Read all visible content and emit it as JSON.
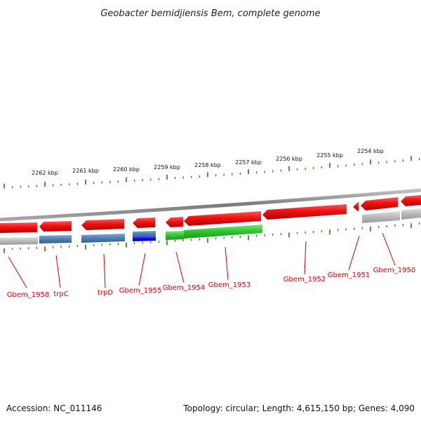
{
  "title": "Geobacter bemidjiensis Bem, complete genome",
  "footer": {
    "accession": "Accession: NC_011146",
    "summary": "Topology: circular; Length: 4,615,150 bp; Genes: 4,090"
  },
  "scale_labels": [
    "2262 kbp",
    "2261 kbp",
    "2260 kbp",
    "2259 kbp",
    "2258 kbp",
    "2257 kbp",
    "2256 kbp",
    "2255 kbp",
    "2254 kbp"
  ],
  "gene_labels": [
    "Gbem_1958",
    "trpC",
    "trpD",
    "Gbem_1955",
    "Gbem_1954",
    "Gbem_1953",
    "Gbem_1952",
    "Gbem_1951",
    "Gbem_1950"
  ],
  "colors": {
    "backbone": "#8a8a8a",
    "gene_red": "#ee1111",
    "cog_gray": "#b5b5b5",
    "cog_steelblue": "#4f7fb5",
    "cog_blue": "#0a10e6",
    "cog_green": "#2ec42e",
    "tick_green": "#2a7a12",
    "label_red": "#cc0000"
  }
}
